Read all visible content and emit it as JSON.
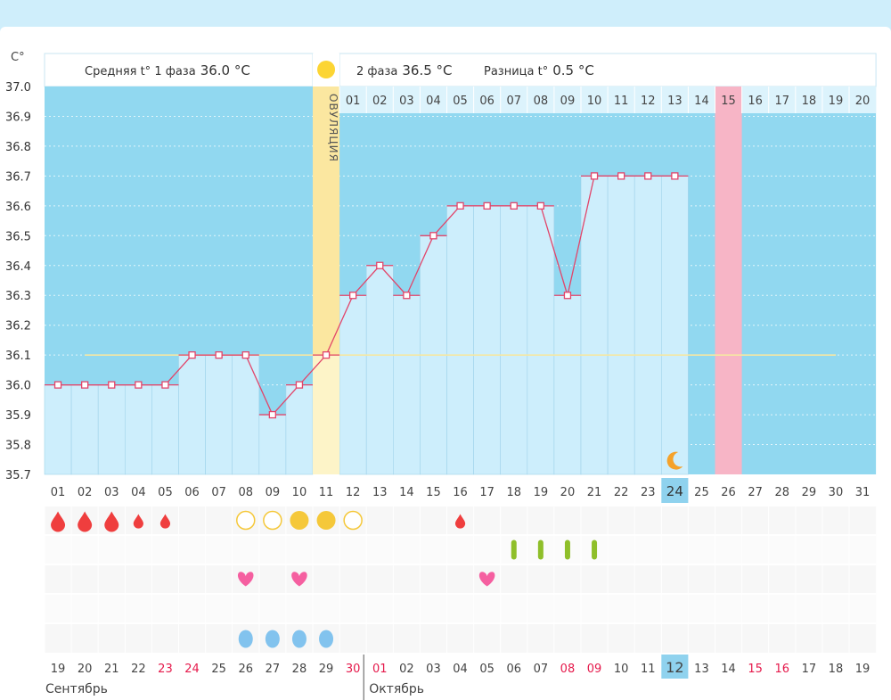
{
  "chart_data": {
    "type": "line",
    "y_unit_label": "C°",
    "phase1_label": "Средняя t° 1 фаза",
    "phase1_value": "36.0 °С",
    "phase2_label": "2 фаза",
    "phase2_value": "36.5 °С",
    "diff_label": "Разница t°",
    "diff_value": "0.5 °С",
    "ovulation_label": "ОВУЛЯЦИЯ",
    "ylim": [
      35.7,
      37.0
    ],
    "yticks": [
      "37.0",
      "36.9",
      "36.8",
      "36.7",
      "36.6",
      "36.5",
      "36.4",
      "36.3",
      "36.2",
      "36.1",
      "36.0",
      "35.9",
      "35.8",
      "35.7"
    ],
    "cover_line": 36.1,
    "cycle_days": [
      "01",
      "02",
      "03",
      "04",
      "05",
      "06",
      "07",
      "08",
      "09",
      "10",
      "11",
      "12",
      "13",
      "14",
      "15",
      "16",
      "17",
      "18",
      "19",
      "20",
      "21",
      "22",
      "23",
      "24",
      "25",
      "26",
      "27",
      "28",
      "29",
      "30",
      "31"
    ],
    "top_numbers": [
      "01",
      "02",
      "03",
      "04",
      "05",
      "06",
      "07",
      "08",
      "09",
      "10",
      "11",
      "12",
      "13",
      "14",
      "15",
      "16",
      "17",
      "18",
      "19",
      "20"
    ],
    "temperatures": [
      36.0,
      36.0,
      36.0,
      36.0,
      36.0,
      36.1,
      36.1,
      36.1,
      35.9,
      36.0,
      36.1,
      36.3,
      36.4,
      36.3,
      36.5,
      36.6,
      36.6,
      36.6,
      36.6,
      36.3,
      36.7,
      36.7,
      36.7,
      36.7
    ],
    "ovulation_day": 11,
    "today_day": 24,
    "expected_period_day": 26,
    "moon_day": 24,
    "dates": [
      "19",
      "20",
      "21",
      "22",
      "23",
      "24",
      "25",
      "26",
      "27",
      "28",
      "29",
      "30",
      "01",
      "02",
      "03",
      "04",
      "05",
      "06",
      "07",
      "08",
      "09",
      "10",
      "11",
      "12",
      "13",
      "14",
      "15",
      "16",
      "17",
      "18",
      "19"
    ],
    "red_dates": [
      5,
      6,
      12,
      13,
      20,
      21,
      27,
      28
    ],
    "months": [
      "Сентябрь",
      "Октябрь"
    ],
    "month_split_day": 13,
    "symbols": {
      "menstruation_big": [
        1,
        2,
        3
      ],
      "menstruation_small": [
        4,
        5,
        16
      ],
      "mucus_outline": [
        8,
        9,
        12
      ],
      "mucus_filled": [
        10,
        11
      ],
      "tests": [
        18,
        19,
        20,
        21
      ],
      "hearts": [
        8,
        10,
        17
      ],
      "drops": [
        8,
        9,
        10,
        11
      ]
    },
    "colors": {
      "phase_bg": "#91d8f0",
      "bar": "#cdeefc",
      "line": "#e2456a",
      "ovulation": "#fbe7a0",
      "sun": "#fcd534",
      "pink_band": "#f7b5c6",
      "today": "#8fd2ee",
      "cover_line": "#f5e7a3",
      "blood": "#ef3e3e",
      "heart": "#f55fa0",
      "test": "#8fbf2a",
      "drop": "#82c3ee",
      "moon": "#f5a22a",
      "red_text": "#e5194b"
    }
  }
}
